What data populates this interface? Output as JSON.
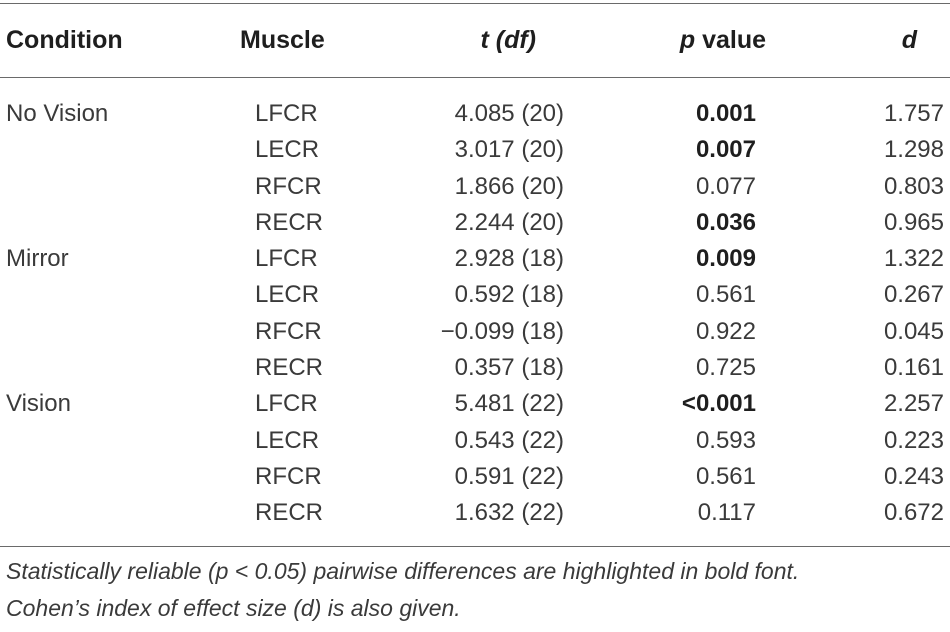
{
  "table": {
    "headers": {
      "condition": "Condition",
      "muscle": "Muscle",
      "t_main": "t",
      "t_df": "(df)",
      "p_italic": "p",
      "p_rest": " value",
      "d": "d"
    },
    "rows": [
      {
        "condition": "No Vision",
        "muscle": "LFCR",
        "t": "4.085 (20)",
        "p": "0.001",
        "p_bold": true,
        "d": "1.757"
      },
      {
        "condition": "",
        "muscle": "LECR",
        "t": "3.017 (20)",
        "p": "0.007",
        "p_bold": true,
        "d": "1.298"
      },
      {
        "condition": "",
        "muscle": "RFCR",
        "t": "1.866 (20)",
        "p": "0.077",
        "p_bold": false,
        "d": "0.803"
      },
      {
        "condition": "",
        "muscle": "RECR",
        "t": "2.244 (20)",
        "p": "0.036",
        "p_bold": true,
        "d": "0.965"
      },
      {
        "condition": "Mirror",
        "muscle": "LFCR",
        "t": "2.928 (18)",
        "p": "0.009",
        "p_bold": true,
        "d": "1.322"
      },
      {
        "condition": "",
        "muscle": "LECR",
        "t": "0.592 (18)",
        "p": "0.561",
        "p_bold": false,
        "d": "0.267"
      },
      {
        "condition": "",
        "muscle": "RFCR",
        "t": "−0.099 (18)",
        "p": "0.922",
        "p_bold": false,
        "d": "0.045"
      },
      {
        "condition": "",
        "muscle": "RECR",
        "t": "0.357 (18)",
        "p": "0.725",
        "p_bold": false,
        "d": "0.161"
      },
      {
        "condition": "Vision",
        "muscle": "LFCR",
        "t": "5.481 (22)",
        "p": "<0.001",
        "p_bold": true,
        "d": "2.257"
      },
      {
        "condition": "",
        "muscle": "LECR",
        "t": "0.543 (22)",
        "p": "0.593",
        "p_bold": false,
        "d": "0.223"
      },
      {
        "condition": "",
        "muscle": "RFCR",
        "t": "0.591 (22)",
        "p": "0.561",
        "p_bold": false,
        "d": "0.243"
      },
      {
        "condition": "",
        "muscle": "RECR",
        "t": "1.632 (22)",
        "p": "0.117",
        "p_bold": false,
        "d": "0.672"
      }
    ],
    "note": {
      "line1": "Statistically reliable (p < 0.05) pairwise differences are highlighted in bold font.",
      "line2": "Cohen’s index of effect size (d) is also given."
    }
  }
}
